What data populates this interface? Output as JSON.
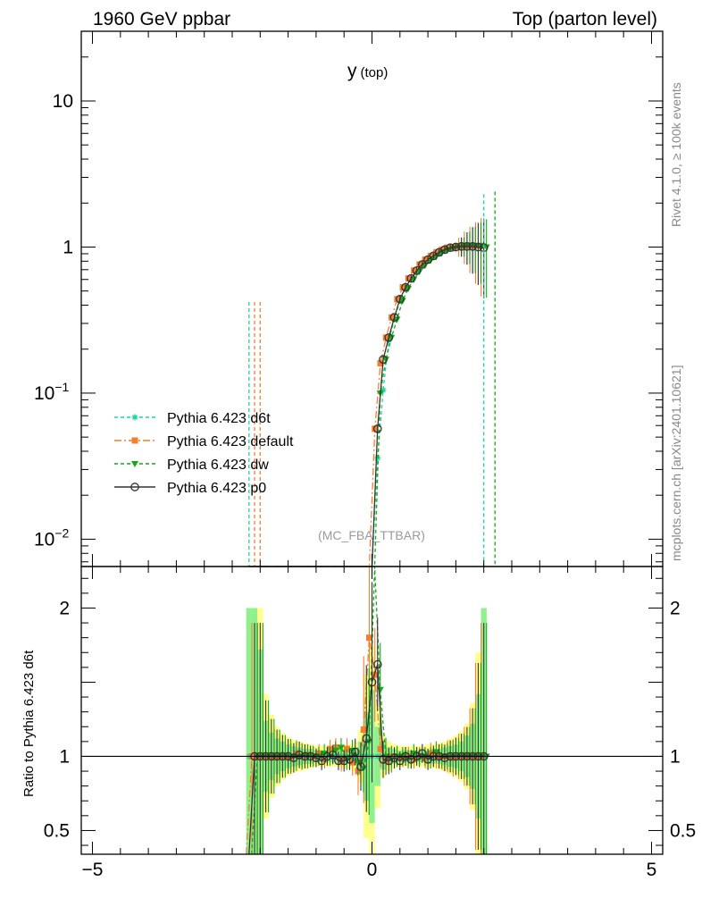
{
  "header": {
    "left": "1960 GeV ppbar",
    "right": "Top (parton level)"
  },
  "side": {
    "rivet": "Rivet 4.1.0, ≥ 100k events",
    "mcplots": "mcplots.cern.ch [arXiv:2401.10621]"
  },
  "plot": {
    "title_main": "y",
    "title_sub": "(top)",
    "watermark": "(MC_FBA_TTBAR)",
    "ratio_ylabel": "Ratio to Pythia 6.423 d6t"
  },
  "colors": {
    "d6t": "#1fd5a0",
    "default": "#f47f2c",
    "dw": "#13aa13",
    "p0": "#333333",
    "band_inner": "#8ff08f",
    "band_outer": "#ffff8c"
  },
  "chart_data": {
    "type": "line",
    "x_axis": {
      "range": [
        -5.2,
        5.2
      ],
      "ticks": [
        -5,
        0,
        5
      ],
      "tick_labels": [
        "−5",
        "0",
        "5"
      ]
    },
    "main_y_axis": {
      "scale": "log",
      "range": [
        0.0065,
        30
      ],
      "tick_labels": [
        {
          "value": 0.01,
          "base": "10",
          "exp": "−2"
        },
        {
          "value": 0.1,
          "base": "10",
          "exp": "−1"
        },
        {
          "value": 1,
          "text": "1"
        },
        {
          "value": 10,
          "text": "10"
        }
      ]
    },
    "ratio_y_axis": {
      "scale": "linear",
      "range": [
        0.34,
        2.28
      ],
      "tick_labels": [
        {
          "value": 0.5,
          "text": "0.5"
        },
        {
          "value": 1,
          "text": "1"
        },
        {
          "value": 2,
          "text": "2"
        }
      ]
    },
    "legend": [
      {
        "name": "Pythia 6.423 d6t",
        "key": "d6t",
        "marker": "star",
        "dash": "4 3"
      },
      {
        "name": "Pythia 6.423 default",
        "key": "default",
        "marker": "square",
        "dash": "8 3 2 3"
      },
      {
        "name": "Pythia 6.423 dw",
        "key": "dw",
        "marker": "triangle-down",
        "dash": "4 3"
      },
      {
        "name": "Pythia 6.423 p0",
        "key": "p0",
        "marker": "open-circle",
        "dash": ""
      }
    ],
    "legend_position": "lower-left",
    "x": [
      -2.2,
      -2.1,
      -2.0,
      -1.9,
      -1.8,
      -1.7,
      -1.6,
      -1.5,
      -1.4,
      -1.3,
      -1.2,
      -1.1,
      -1.0,
      -0.9,
      -0.8,
      -0.7,
      -0.6,
      -0.5,
      -0.4,
      -0.3,
      -0.2,
      -0.1,
      0.0,
      0.1,
      0.2,
      0.3,
      0.4,
      0.5,
      0.6,
      0.7,
      0.8,
      0.9,
      1.0,
      1.1,
      1.2,
      1.3,
      1.4,
      1.5,
      1.6,
      1.7,
      1.8,
      1.9,
      2.0
    ],
    "series": [
      {
        "name": "Pythia 6.423 d6t",
        "values": [
          0.0065,
          0.0065,
          0.0065,
          0.0065,
          0.0065,
          0.0065,
          0.0065,
          0.0065,
          0.0065,
          0.0065,
          0.0065,
          0.0065,
          0.0065,
          0.0065,
          0.0065,
          0.0065,
          0.0065,
          0.0065,
          0.0065,
          0.0065,
          0.0065,
          0.0065,
          0.0065,
          0.036,
          0.105,
          0.23,
          0.32,
          0.43,
          0.52,
          0.6,
          0.68,
          0.75,
          0.81,
          0.86,
          0.91,
          0.95,
          0.98,
          1.0,
          1.01,
          1.01,
          1.02,
          1.02,
          1.02
        ],
        "ratio": [
          1.0,
          1.0,
          1.0,
          1.0,
          1.0,
          1.0,
          1.0,
          1.0,
          1.0,
          1.0,
          1.0,
          1.0,
          1.0,
          1.0,
          1.0,
          1.0,
          1.0,
          1.0,
          1.0,
          1.0,
          1.0,
          1.0,
          1.0,
          1.0,
          1.0,
          1.0,
          1.0,
          1.0,
          1.0,
          1.0,
          1.0,
          1.0,
          1.0,
          1.0,
          1.0,
          1.0,
          1.0,
          1.0,
          1.0,
          1.0,
          1.0,
          1.0,
          1.0
        ]
      },
      {
        "name": "Pythia 6.423 default",
        "values": [
          0.0065,
          0.0065,
          0.0065,
          0.0065,
          0.0065,
          0.0065,
          0.0065,
          0.0065,
          0.0065,
          0.0065,
          0.0065,
          0.0065,
          0.0065,
          0.0065,
          0.0065,
          0.0065,
          0.0065,
          0.0065,
          0.0065,
          0.0065,
          0.0065,
          0.0065,
          0.0065,
          0.057,
          0.16,
          0.24,
          0.33,
          0.44,
          0.53,
          0.61,
          0.69,
          0.76,
          0.82,
          0.87,
          0.92,
          0.96,
          0.99,
          1.0,
          1.01,
          1.02,
          1.02,
          1.02,
          1.02
        ],
        "ratio": [
          0.2,
          1.0,
          1.0,
          1.0,
          1.0,
          1.0,
          1.0,
          1.0,
          0.99,
          1.02,
          1.0,
          1.01,
          1.0,
          1.02,
          0.98,
          1.05,
          1.06,
          0.97,
          1.05,
          0.96,
          0.9,
          1.18,
          1.8,
          1.55,
          1.05,
          0.97,
          1.0,
          1.0,
          0.99,
          1.0,
          0.98,
          1.0,
          0.99,
          1.02,
          1.0,
          1.0,
          1.0,
          0.99,
          1.0,
          1.0,
          1.0,
          1.0,
          1.0
        ]
      },
      {
        "name": "Pythia 6.423 dw",
        "values": [
          0.0065,
          0.0065,
          0.0065,
          0.0065,
          0.0065,
          0.0065,
          0.0065,
          0.0065,
          0.0065,
          0.0065,
          0.0065,
          0.0065,
          0.0065,
          0.0065,
          0.0065,
          0.0065,
          0.0065,
          0.0065,
          0.0065,
          0.0065,
          0.0065,
          0.0065,
          0.0065,
          0.1,
          0.17,
          0.24,
          0.32,
          0.43,
          0.52,
          0.6,
          0.68,
          0.75,
          0.81,
          0.86,
          0.91,
          0.95,
          0.98,
          1.0,
          1.01,
          1.02,
          1.02,
          1.02,
          1.0
        ],
        "ratio": [
          0.2,
          1.0,
          1.0,
          1.0,
          1.0,
          1.0,
          1.0,
          1.0,
          1.0,
          1.0,
          1.0,
          1.0,
          1.0,
          1.02,
          1.0,
          1.04,
          1.06,
          0.98,
          1.04,
          0.96,
          0.92,
          1.1,
          2.4,
          1.45,
          1.0,
          0.98,
          1.0,
          1.0,
          0.98,
          1.02,
          0.99,
          1.0,
          0.99,
          1.03,
          1.0,
          1.0,
          1.0,
          1.0,
          1.0,
          1.0,
          1.0,
          1.0,
          1.0
        ]
      },
      {
        "name": "Pythia 6.423 p0",
        "values": [
          0.0065,
          0.0065,
          0.0065,
          0.0065,
          0.0065,
          0.0065,
          0.0065,
          0.0065,
          0.0065,
          0.0065,
          0.0065,
          0.0065,
          0.0065,
          0.0065,
          0.0065,
          0.0065,
          0.0065,
          0.0065,
          0.0065,
          0.0065,
          0.0065,
          0.0065,
          0.0065,
          0.057,
          0.17,
          0.24,
          0.33,
          0.44,
          0.53,
          0.61,
          0.69,
          0.76,
          0.82,
          0.87,
          0.92,
          0.96,
          0.99,
          1.0,
          1.01,
          1.01,
          1.01,
          1.0,
          0.99
        ],
        "ratio": [
          0.2,
          1.0,
          1.0,
          1.0,
          1.0,
          1.0,
          1.0,
          1.0,
          0.99,
          1.01,
          1.0,
          1.0,
          0.99,
          0.97,
          1.0,
          1.01,
          0.97,
          0.97,
          0.98,
          1.03,
          0.93,
          1.12,
          1.5,
          1.62,
          0.98,
          0.97,
          0.99,
          0.97,
          1.0,
          0.98,
          1.0,
          1.02,
          0.98,
          1.0,
          1.0,
          0.99,
          1.0,
          1.0,
          1.0,
          1.0,
          1.0,
          1.0,
          1.0
        ]
      }
    ],
    "ratio_band": {
      "x": [
        -2.2,
        -2.1,
        -2.0,
        -1.9,
        -1.8,
        -1.7,
        -1.6,
        -1.5,
        -1.4,
        -1.3,
        -1.2,
        -1.1,
        -1.0,
        -0.9,
        -0.8,
        -0.7,
        -0.6,
        -0.5,
        -0.4,
        -0.3,
        -0.2,
        -0.1,
        0.0,
        0.1,
        0.2,
        0.3,
        0.4,
        0.5,
        0.6,
        0.7,
        0.8,
        0.9,
        1.0,
        1.1,
        1.2,
        1.3,
        1.4,
        1.5,
        1.6,
        1.7,
        1.8,
        1.9,
        2.0
      ],
      "inner_err": [
        1.0,
        1.0,
        0.72,
        0.24,
        0.16,
        0.12,
        0.1,
        0.08,
        0.07,
        0.06,
        0.05,
        0.05,
        0.04,
        0.04,
        0.04,
        0.04,
        0.05,
        0.05,
        0.05,
        0.06,
        0.1,
        0.3,
        0.45,
        0.2,
        0.09,
        0.06,
        0.05,
        0.04,
        0.04,
        0.04,
        0.04,
        0.04,
        0.04,
        0.05,
        0.05,
        0.06,
        0.07,
        0.08,
        0.1,
        0.14,
        0.22,
        0.42,
        1.0
      ],
      "outer_err": [
        1.0,
        1.0,
        1.0,
        0.42,
        0.28,
        0.2,
        0.16,
        0.13,
        0.11,
        0.1,
        0.09,
        0.08,
        0.07,
        0.07,
        0.07,
        0.07,
        0.07,
        0.08,
        0.08,
        0.1,
        0.18,
        0.55,
        0.75,
        0.35,
        0.14,
        0.1,
        0.08,
        0.07,
        0.07,
        0.07,
        0.07,
        0.07,
        0.08,
        0.08,
        0.09,
        0.1,
        0.12,
        0.14,
        0.17,
        0.22,
        0.36,
        0.7,
        1.0
      ]
    }
  }
}
